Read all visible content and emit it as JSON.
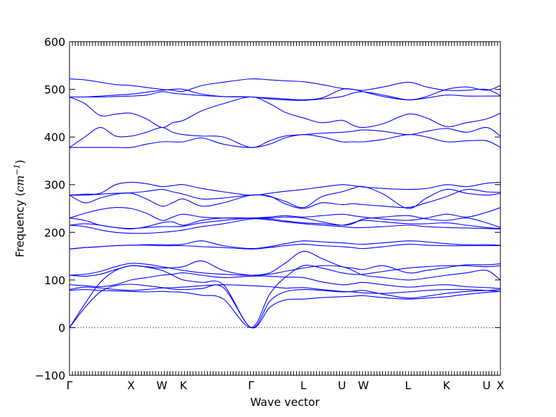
{
  "chart_data": {
    "type": "line",
    "title": "",
    "xlabel": "Wave vector",
    "ylabel": "Frequency (cm⁻¹)",
    "ylabel_prefix": "Frequency (",
    "ylabel_unit": "cm",
    "ylabel_exp": "−1",
    "ylabel_suffix": ")",
    "ylim": [
      -100,
      600
    ],
    "yticks": [
      -100,
      0,
      100,
      200,
      300,
      400,
      500,
      600
    ],
    "xlim": [
      0,
      14
    ],
    "high_symmetry_points": [
      {
        "label": "Γ",
        "x": 0
      },
      {
        "label": "X",
        "x": 2
      },
      {
        "label": "W",
        "x": 3
      },
      {
        "label": "K",
        "x": 3.7
      },
      {
        "label": "Γ",
        "x": 5.9
      },
      {
        "label": "L",
        "x": 7.6
      },
      {
        "label": "U",
        "x": 8.85
      },
      {
        "label": "W",
        "x": 9.55
      },
      {
        "label": "L",
        "x": 11
      },
      {
        "label": "K",
        "x": 12.25
      },
      {
        "label": "U",
        "x": 13.55
      },
      {
        "label": "X",
        "x": 14
      }
    ],
    "zero_line": 0,
    "series_color": "#0000ff",
    "series": [
      {
        "x": [
          0,
          0.5,
          1,
          1.5,
          2,
          2.5,
          3,
          3.35,
          3.7,
          4.3,
          5,
          5.9,
          6.5,
          7,
          7.6,
          8.2,
          8.85,
          9.2,
          9.55,
          10.2,
          11,
          11.6,
          12.25,
          12.9,
          13.55,
          14
        ],
        "values": [
          0,
          42,
          75,
          88,
          91,
          88,
          84,
          81,
          80,
          82,
          84,
          0,
          42,
          58,
          60,
          63,
          65,
          66,
          67,
          63,
          60,
          62,
          65,
          70,
          74,
          76
        ]
      },
      {
        "x": [
          0,
          0.5,
          1,
          1.5,
          2,
          2.5,
          3,
          3.35,
          3.7,
          4.3,
          5,
          5.9,
          6.5,
          7,
          7.6,
          8.2,
          8.85,
          9.2,
          9.55,
          10.2,
          11,
          11.6,
          12.25,
          12.9,
          13.55,
          14
        ],
        "values": [
          0,
          50,
          95,
          120,
          130,
          127,
          120,
          110,
          100,
          95,
          90,
          0,
          55,
          75,
          80,
          78,
          75,
          76,
          78,
          70,
          62,
          66,
          72,
          76,
          78,
          80
        ]
      },
      {
        "x": [
          0,
          0.5,
          1,
          1.5,
          2,
          2.5,
          3,
          3.35,
          3.7,
          4.3,
          5,
          5.9,
          6.5,
          7,
          7.6,
          8.2,
          8.85,
          9.2,
          9.55,
          10.2,
          11,
          11.6,
          12.25,
          12.9,
          13.55,
          14
        ],
        "values": [
          78,
          80,
          78,
          77,
          76,
          75,
          76,
          75,
          74,
          68,
          60,
          0,
          70,
          105,
          130,
          125,
          115,
          112,
          112,
          118,
          125,
          128,
          130,
          130,
          128,
          130
        ]
      },
      {
        "x": [
          0,
          0.5,
          1,
          1.5,
          2,
          2.5,
          3,
          3.35,
          3.7,
          4.3,
          5,
          5.9,
          6.5,
          7,
          7.6,
          8.2,
          8.85,
          9.2,
          9.55,
          10.2,
          11,
          11.6,
          12.25,
          12.9,
          13.55,
          14
        ],
        "values": [
          80,
          85,
          83,
          80,
          78,
          80,
          83,
          84,
          85,
          88,
          90,
          88,
          86,
          83,
          84,
          80,
          76,
          75,
          73,
          72,
          75,
          78,
          80,
          80,
          78,
          76
        ]
      },
      {
        "x": [
          0,
          0.5,
          1,
          1.5,
          2,
          2.5,
          3,
          3.35,
          3.7,
          4.3,
          5,
          5.9,
          6.5,
          7,
          7.6,
          8.2,
          8.85,
          9.2,
          9.55,
          10.2,
          11,
          11.6,
          12.25,
          12.9,
          13.55,
          14
        ],
        "values": [
          90,
          88,
          86,
          90,
          100,
          105,
          110,
          112,
          115,
          110,
          105,
          108,
          108,
          106,
          105,
          96,
          90,
          92,
          95,
          90,
          85,
          88,
          90,
          86,
          84,
          82
        ]
      },
      {
        "x": [
          0,
          0.5,
          1,
          1.5,
          2,
          2.5,
          3,
          3.35,
          3.7,
          4.3,
          5,
          5.9,
          6.5,
          7,
          7.6,
          8.2,
          8.85,
          9.2,
          9.55,
          10.2,
          11,
          11.6,
          12.25,
          12.9,
          13.55,
          14
        ],
        "values": [
          110,
          108,
          112,
          122,
          130,
          128,
          125,
          126,
          128,
          140,
          120,
          110,
          112,
          118,
          125,
          130,
          128,
          120,
          110,
          105,
          100,
          104,
          110,
          115,
          120,
          100
        ]
      },
      {
        "x": [
          0,
          0.5,
          1,
          1.5,
          2,
          2.5,
          3,
          3.35,
          3.7,
          4.3,
          5,
          5.9,
          6.5,
          7,
          7.6,
          8.2,
          8.85,
          9.2,
          9.55,
          10.2,
          11,
          11.6,
          12.25,
          12.9,
          13.55,
          14
        ],
        "values": [
          110,
          112,
          118,
          128,
          135,
          133,
          128,
          124,
          120,
          115,
          112,
          110,
          115,
          135,
          160,
          145,
          128,
          125,
          122,
          130,
          115,
          120,
          126,
          132,
          132,
          134
        ]
      },
      {
        "x": [
          0,
          0.5,
          1,
          1.5,
          2,
          2.5,
          3,
          3.35,
          3.7,
          4.3,
          5,
          5.9,
          6.5,
          7,
          7.6,
          8.2,
          8.85,
          9.2,
          9.55,
          10.2,
          11,
          11.6,
          12.25,
          12.9,
          13.55,
          14
        ],
        "values": [
          165,
          168,
          170,
          172,
          173,
          173,
          172,
          172,
          172,
          170,
          168,
          165,
          168,
          172,
          175,
          172,
          170,
          168,
          166,
          170,
          175,
          173,
          172,
          172,
          172,
          172
        ]
      },
      {
        "x": [
          0,
          0.5,
          1,
          1.5,
          2,
          2.5,
          3,
          3.35,
          3.7,
          4.3,
          5,
          5.9,
          6.5,
          7,
          7.6,
          8.2,
          8.85,
          9.2,
          9.55,
          10.2,
          11,
          11.6,
          12.25,
          12.9,
          13.55,
          14
        ],
        "values": [
          165,
          168,
          170,
          172,
          173,
          174,
          174,
          174,
          175,
          182,
          172,
          166,
          170,
          176,
          182,
          180,
          178,
          176,
          175,
          178,
          182,
          180,
          176,
          174,
          174,
          173
        ]
      },
      {
        "x": [
          0,
          0.5,
          1,
          1.5,
          2,
          2.5,
          3,
          3.35,
          3.7,
          4.3,
          5,
          5.9,
          6.5,
          7,
          7.6,
          8.2,
          8.85,
          9.2,
          9.55,
          10.2,
          11,
          11.6,
          12.25,
          12.9,
          13.55,
          14
        ],
        "values": [
          215,
          212,
          205,
          200,
          198,
          198,
          200,
          202,
          205,
          212,
          218,
          228,
          226,
          222,
          218,
          215,
          212,
          210,
          210,
          212,
          215,
          212,
          210,
          209,
          208,
          207
        ]
      },
      {
        "x": [
          0,
          0.5,
          1,
          1.5,
          2,
          2.5,
          3,
          3.35,
          3.7,
          4.3,
          5,
          5.9,
          6.5,
          7,
          7.6,
          8.2,
          8.85,
          9.2,
          9.55,
          10.2,
          11,
          11.6,
          12.25,
          12.9,
          13.55,
          14
        ],
        "values": [
          215,
          218,
          215,
          210,
          208,
          210,
          212,
          212,
          213,
          220,
          225,
          230,
          228,
          224,
          220,
          218,
          215,
          220,
          225,
          222,
          218,
          218,
          220,
          215,
          210,
          208
        ]
      },
      {
        "x": [
          0,
          0.5,
          1,
          1.5,
          2,
          2.5,
          3,
          3.35,
          3.7,
          4.3,
          5,
          5.9,
          6.5,
          7,
          7.6,
          8.2,
          8.85,
          9.2,
          9.55,
          10.2,
          11,
          11.6,
          12.25,
          12.9,
          13.55,
          14
        ],
        "values": [
          230,
          225,
          215,
          210,
          207,
          212,
          220,
          222,
          215,
          225,
          230,
          230,
          230,
          232,
          230,
          222,
          215,
          218,
          228,
          232,
          235,
          228,
          225,
          230,
          220,
          210
        ]
      },
      {
        "x": [
          0,
          0.5,
          1,
          1.5,
          2,
          2.5,
          3,
          3.35,
          3.7,
          4.3,
          5,
          5.9,
          6.5,
          7,
          7.6,
          8.2,
          8.85,
          9.2,
          9.55,
          10.2,
          11,
          11.6,
          12.25,
          12.9,
          13.55,
          14
        ],
        "values": [
          230,
          240,
          248,
          252,
          250,
          240,
          225,
          232,
          238,
          232,
          230,
          230,
          232,
          235,
          232,
          235,
          238,
          235,
          232,
          228,
          225,
          230,
          238,
          232,
          242,
          252
        ]
      },
      {
        "x": [
          0,
          0.5,
          1,
          1.5,
          2,
          2.5,
          3,
          3.35,
          3.7,
          4.3,
          5,
          5.9,
          6.5,
          7,
          7.6,
          8.2,
          8.85,
          9.2,
          9.55,
          10.2,
          11,
          11.6,
          12.25,
          12.9,
          13.55,
          14
        ],
        "values": [
          278,
          262,
          272,
          280,
          282,
          270,
          255,
          262,
          270,
          255,
          262,
          278,
          275,
          265,
          252,
          275,
          285,
          292,
          296,
          280,
          250,
          272,
          290,
          282,
          278,
          282
        ]
      },
      {
        "x": [
          0,
          0.5,
          1,
          1.5,
          2,
          2.5,
          3,
          3.35,
          3.7,
          4.3,
          5,
          5.9,
          6.5,
          7,
          7.6,
          8.2,
          8.85,
          9.2,
          9.55,
          10.2,
          11,
          11.6,
          12.25,
          12.9,
          13.55,
          14
        ],
        "values": [
          278,
          278,
          280,
          282,
          283,
          286,
          290,
          285,
          280,
          270,
          272,
          278,
          276,
          260,
          250,
          262,
          258,
          260,
          258,
          255,
          252,
          262,
          275,
          290,
          285,
          284
        ]
      },
      {
        "x": [
          0,
          0.5,
          1,
          1.5,
          2,
          2.5,
          3,
          3.35,
          3.7,
          4.3,
          5,
          5.9,
          6.5,
          7,
          7.6,
          8.2,
          8.85,
          9.2,
          9.55,
          10.2,
          11,
          11.6,
          12.25,
          12.9,
          13.55,
          14
        ],
        "values": [
          278,
          280,
          282,
          300,
          305,
          302,
          296,
          298,
          300,
          292,
          285,
          278,
          282,
          286,
          290,
          295,
          300,
          298,
          295,
          292,
          290,
          292,
          300,
          296,
          303,
          305
        ]
      },
      {
        "x": [
          0,
          0.5,
          1,
          1.5,
          2,
          2.5,
          3,
          3.35,
          3.7,
          4.3,
          5,
          5.9,
          6.5,
          7,
          7.6,
          8.2,
          8.85,
          9.2,
          9.55,
          10.2,
          11,
          11.6,
          12.25,
          12.9,
          13.55,
          14
        ],
        "values": [
          378,
          378,
          378,
          378,
          378,
          385,
          390,
          390,
          390,
          398,
          385,
          378,
          385,
          398,
          405,
          400,
          390,
          390,
          390,
          395,
          405,
          400,
          390,
          392,
          392,
          378
        ]
      },
      {
        "x": [
          0,
          0.5,
          1,
          1.5,
          2,
          2.5,
          3,
          3.35,
          3.7,
          4.3,
          5,
          5.9,
          6.5,
          7,
          7.6,
          8.2,
          8.85,
          9.2,
          9.55,
          10.2,
          11,
          11.6,
          12.25,
          12.9,
          13.55,
          14
        ],
        "values": [
          378,
          400,
          420,
          402,
          402,
          410,
          420,
          410,
          405,
          402,
          400,
          378,
          392,
          402,
          405,
          408,
          410,
          412,
          415,
          412,
          405,
          412,
          418,
          410,
          420,
          402
        ]
      },
      {
        "x": [
          0,
          0.5,
          1,
          1.5,
          2,
          2.5,
          3,
          3.35,
          3.7,
          4.3,
          5,
          5.9,
          6.5,
          7,
          7.6,
          8.2,
          8.85,
          9.2,
          9.55,
          10.2,
          11,
          11.6,
          12.25,
          12.9,
          13.55,
          14
        ],
        "values": [
          484,
          470,
          445,
          448,
          450,
          438,
          420,
          430,
          435,
          455,
          470,
          484,
          470,
          452,
          440,
          430,
          435,
          425,
          420,
          428,
          448,
          440,
          422,
          430,
          438,
          450
        ]
      },
      {
        "x": [
          0,
          0.5,
          1,
          1.5,
          2,
          2.5,
          3,
          3.35,
          3.7,
          4.3,
          5,
          5.9,
          6.5,
          7,
          7.6,
          8.2,
          8.85,
          9.2,
          9.55,
          10.2,
          11,
          11.6,
          12.25,
          12.9,
          13.55,
          14
        ],
        "values": [
          484,
          484,
          484,
          485,
          486,
          488,
          495,
          492,
          490,
          487,
          485,
          484,
          480,
          478,
          477,
          480,
          485,
          492,
          495,
          488,
          478,
          482,
          488,
          486,
          486,
          486
        ]
      },
      {
        "x": [
          0,
          0.5,
          1,
          1.5,
          2,
          2.5,
          3,
          3.35,
          3.7,
          4.3,
          5,
          5.9,
          6.5,
          7,
          7.6,
          8.2,
          8.85,
          9.2,
          9.55,
          10.2,
          11,
          11.6,
          12.25,
          12.9,
          13.55,
          14
        ],
        "values": [
          484,
          484,
          486,
          488,
          490,
          494,
          498,
          500,
          500,
          490,
          485,
          484,
          482,
          480,
          478,
          482,
          500,
          500,
          498,
          505,
          515,
          505,
          498,
          498,
          500,
          487
        ]
      },
      {
        "x": [
          0,
          0.5,
          1,
          1.5,
          2,
          2.5,
          3,
          3.35,
          3.7,
          4.3,
          5,
          5.9,
          6.5,
          7,
          7.6,
          8.2,
          8.85,
          9.2,
          9.55,
          10.2,
          11,
          11.6,
          12.25,
          12.9,
          13.55,
          14
        ],
        "values": [
          522,
          520,
          515,
          510,
          508,
          504,
          500,
          498,
          496,
          508,
          515,
          522,
          520,
          518,
          516,
          510,
          502,
          500,
          495,
          485,
          478,
          485,
          500,
          505,
          498,
          508
        ]
      }
    ]
  }
}
